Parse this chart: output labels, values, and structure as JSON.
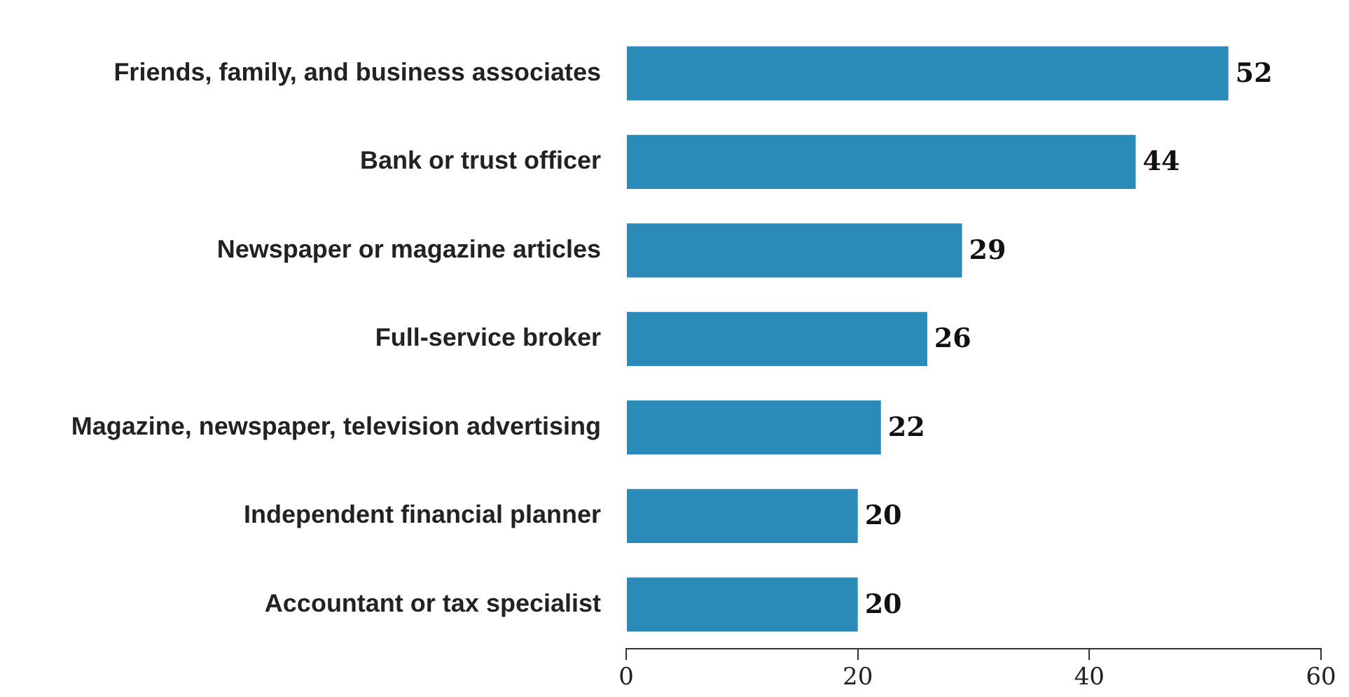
{
  "chart_data": {
    "type": "bar",
    "orientation": "horizontal",
    "categories": [
      "Friends, family, and business associates",
      "Bank or trust officer",
      "Newspaper or magazine articles",
      "Full-service broker",
      "Magazine, newspaper, television advertising",
      "Independent financial planner",
      "Accountant or tax specialist"
    ],
    "values": [
      52,
      44,
      29,
      26,
      22,
      20,
      20
    ],
    "color": "#2a8ab8",
    "xlim": [
      0,
      60
    ],
    "xticks": [
      0,
      20,
      40,
      60
    ],
    "grid": false,
    "data_labels": true
  }
}
